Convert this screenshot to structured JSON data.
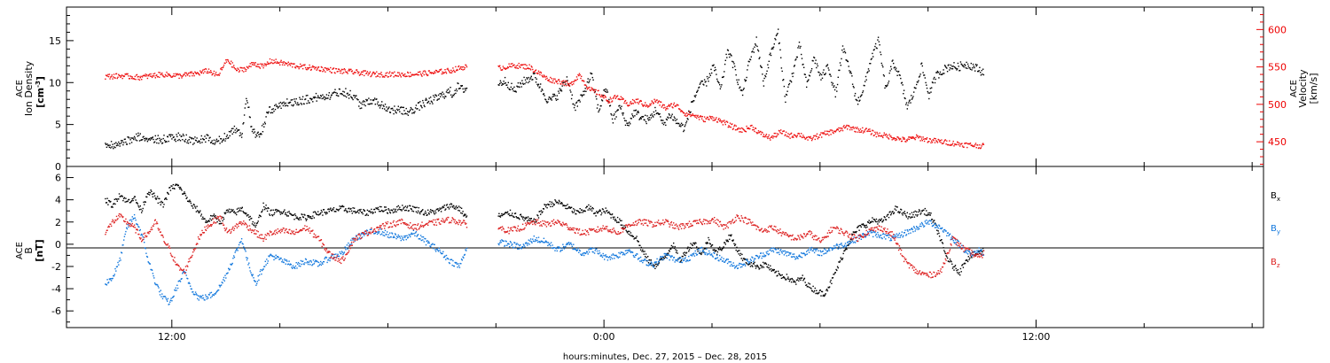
{
  "chart_data": [
    {
      "type": "scatter",
      "panel": "solar-wind-plasma",
      "ylabel_left": [
        "ACE",
        "Ion Density",
        "[cm",
        "-3",
        "]"
      ],
      "ylabel_right": [
        "ACE",
        "Velocity",
        "[km/s]"
      ],
      "ylim_left": [
        0,
        19
      ],
      "ylim_right": [
        417,
        630
      ],
      "yticks_left": [
        0,
        5,
        10,
        15
      ],
      "yticks_right": [
        450,
        500,
        550,
        600
      ],
      "series": [
        {
          "axis": "left",
          "color": "#000000",
          "x": [
            3.2,
            4.6,
            6.0,
            8.0,
            9.4,
            10.8,
            11.6,
            12.4,
            13.2,
            14.0,
            14.6,
            15.0,
            15.4,
            15.8,
            16.2,
            16.8,
            18.0,
            19.4,
            20.8,
            22.0,
            23.0,
            24.0,
            24.6,
            25.4,
            27.0,
            28.6,
            29.8,
            31.0,
            32.0,
            32.2,
            32.6,
            33.0,
            36.0,
            36.6,
            37.4,
            38.0,
            39.0,
            40.2,
            41.0,
            41.8,
            42.4,
            43.0,
            43.8,
            44.4,
            45.0,
            45.6,
            46.2,
            46.8,
            47.4,
            48.0,
            48.6,
            49.2,
            49.8,
            50.4,
            51.0,
            51.6,
            52.2,
            52.8,
            53.4,
            54.0,
            54.6,
            55.2,
            55.8,
            56.4,
            57.0,
            57.6,
            58.2,
            58.8,
            59.4,
            60.0,
            60.6,
            61.2,
            61.8,
            62.4,
            63.0,
            63.6,
            64.2,
            64.8,
            65.4,
            66.0,
            66.6,
            67.2,
            67.8,
            68.4,
            69.0,
            69.6,
            70.2,
            70.8,
            71.4,
            72.0,
            72.6,
            73.2,
            73.8,
            74.4,
            75.0,
            75.6,
            76.2,
            76.6
          ],
          "values": [
            2.5,
            2.8,
            3.5,
            3.2,
            3.5,
            3.0,
            3.4,
            2.8,
            3.5,
            4.5,
            3.8,
            8.5,
            4.5,
            3.5,
            4.0,
            6.5,
            7.5,
            7.8,
            8.2,
            8.5,
            9.0,
            8.3,
            7.2,
            8.0,
            6.8,
            6.5,
            7.5,
            8.2,
            9.0,
            8.5,
            9.5,
            9.2,
            9.8,
            10.2,
            9.0,
            10.0,
            10.8,
            7.8,
            8.5,
            10.5,
            7.0,
            8.2,
            11.0,
            6.5,
            9.5,
            5.5,
            7.2,
            4.8,
            6.5,
            5.8,
            5.5,
            6.8,
            5.0,
            6.2,
            5.2,
            4.5,
            7.5,
            9.5,
            10.0,
            12.0,
            9.0,
            14.0,
            11.5,
            8.5,
            12.5,
            15.0,
            10.0,
            13.5,
            16.0,
            8.0,
            11.0,
            14.5,
            9.5,
            13.0,
            10.5,
            12.0,
            8.5,
            14.0,
            11.5,
            7.5,
            9.5,
            13.0,
            15.0,
            9.0,
            12.5,
            10.5,
            7.0,
            9.0,
            12.0,
            8.5,
            10.8,
            11.5,
            12.0,
            11.8,
            12.2,
            12.0,
            11.5,
            11.2
          ]
        },
        {
          "axis": "right",
          "color": "#ee1111",
          "x": [
            3.2,
            4.6,
            6.0,
            8.0,
            9.4,
            10.8,
            11.8,
            12.6,
            13.4,
            14.2,
            15.0,
            15.6,
            16.4,
            17.0,
            18.0,
            19.6,
            21.0,
            22.4,
            24.0,
            25.6,
            27.2,
            28.8,
            30.4,
            32.0,
            33.2,
            34.6,
            36.0,
            37.4,
            38.6,
            39.6,
            40.0,
            40.6,
            41.4,
            42.0,
            42.8,
            43.6,
            44.4,
            45.2,
            46.0,
            46.8,
            47.6,
            48.4,
            49.2,
            50.0,
            50.8,
            51.6,
            52.4,
            53.2,
            54.0,
            54.8,
            55.6,
            56.4,
            57.2,
            58.0,
            58.8,
            59.6,
            60.4,
            61.2,
            62.0,
            62.8,
            63.6,
            64.4,
            65.2,
            66.0,
            66.8,
            67.6,
            68.4,
            69.2,
            70.0,
            71.0,
            72.0,
            73.0,
            74.0,
            75.0,
            76.0,
            76.6
          ],
          "values": [
            537,
            538,
            536,
            540,
            538,
            541,
            545,
            538,
            560,
            545,
            548,
            555,
            550,
            558,
            555,
            550,
            548,
            545,
            543,
            540,
            540,
            540,
            542,
            545,
            550,
            550,
            548,
            552,
            550,
            540,
            535,
            532,
            530,
            525,
            540,
            520,
            515,
            505,
            510,
            500,
            505,
            498,
            505,
            495,
            500,
            488,
            485,
            480,
            482,
            476,
            470,
            465,
            470,
            460,
            455,
            463,
            458,
            460,
            453,
            458,
            462,
            465,
            470,
            466,
            465,
            460,
            458,
            455,
            452,
            456,
            452,
            450,
            448,
            446,
            445,
            444
          ]
        }
      ],
      "gaps": [
        [
          33.4,
          36.0
        ]
      ]
    },
    {
      "type": "scatter",
      "panel": "interplanetary-magnetic-field",
      "ylabel_left": [
        "ACE",
        "B",
        "[nT]"
      ],
      "ylim": [
        -7.5,
        7.0
      ],
      "yticks": [
        -6,
        -4,
        -2,
        0,
        2,
        4,
        6
      ],
      "zero_line": true,
      "series": [
        {
          "name": "B",
          "sub": "x",
          "color": "#000000",
          "x": [
            3.2,
            3.8,
            4.4,
            5.0,
            5.6,
            6.2,
            6.8,
            7.4,
            8.0,
            8.6,
            9.2,
            9.8,
            10.4,
            11.0,
            11.6,
            12.2,
            12.8,
            13.4,
            14.0,
            14.6,
            15.2,
            15.8,
            16.4,
            17.0,
            18.0,
            19.0,
            20.0,
            21.0,
            22.0,
            23.0,
            24.0,
            25.0,
            26.0,
            27.0,
            28.0,
            29.0,
            30.0,
            31.0,
            32.0,
            32.8,
            33.3,
            36.0,
            37.0,
            38.0,
            39.0,
            40.0,
            41.0,
            42.0,
            42.6,
            43.0,
            43.6,
            44.2,
            45.0,
            45.6,
            46.2,
            47.0,
            47.6,
            48.0,
            48.6,
            49.2,
            50.0,
            50.6,
            51.2,
            51.8,
            52.4,
            53.0,
            53.6,
            54.2,
            54.8,
            55.4,
            56.0,
            56.6,
            57.2,
            57.8,
            58.4,
            59.0,
            59.6,
            60.2,
            60.8,
            61.4,
            62.0,
            62.6,
            63.2,
            63.8,
            64.4,
            65.0,
            65.6,
            66.2,
            66.8,
            67.4,
            68.0,
            68.6,
            69.2,
            69.8,
            70.4,
            71.0,
            71.6,
            72.2,
            72.8,
            73.4,
            74.0,
            74.6,
            75.0,
            75.6,
            76.2,
            76.6
          ],
          "values": [
            4.0,
            3.5,
            4.5,
            3.8,
            4.2,
            3.0,
            4.8,
            4.2,
            3.5,
            5.0,
            5.3,
            4.5,
            3.5,
            3.0,
            2.0,
            2.5,
            2.0,
            3.0,
            2.8,
            3.2,
            2.5,
            1.5,
            3.5,
            2.8,
            3.0,
            2.5,
            2.4,
            2.8,
            3.0,
            3.2,
            3.0,
            2.8,
            3.2,
            3.0,
            3.3,
            3.2,
            2.8,
            3.0,
            3.5,
            3.2,
            2.5,
            2.5,
            2.8,
            2.4,
            2.0,
            3.5,
            3.8,
            3.2,
            2.8,
            3.0,
            3.3,
            2.8,
            3.0,
            2.5,
            2.0,
            1.0,
            0.5,
            -0.5,
            -1.5,
            -2.0,
            -1.0,
            0.0,
            -1.5,
            -0.5,
            0.2,
            -1.0,
            0.5,
            -0.8,
            -0.2,
            0.8,
            -0.5,
            -1.5,
            -1.8,
            -2.0,
            -1.8,
            -2.5,
            -2.8,
            -3.0,
            -3.5,
            -3.0,
            -3.8,
            -4.2,
            -4.5,
            -3.5,
            -2.0,
            -0.5,
            0.8,
            1.5,
            1.8,
            2.2,
            2.0,
            2.5,
            3.2,
            2.8,
            2.5,
            2.8,
            3.0,
            2.5,
            1.0,
            -1.0,
            -2.0,
            -2.5,
            -1.5,
            -1.0,
            -0.8,
            -0.5
          ]
        },
        {
          "name": "B",
          "sub": "y",
          "color": "#1177dd",
          "x": [
            3.2,
            3.8,
            4.4,
            5.0,
            5.6,
            6.2,
            6.8,
            7.4,
            8.0,
            8.6,
            9.2,
            9.8,
            10.4,
            11.0,
            11.6,
            12.2,
            12.8,
            13.4,
            14.0,
            14.6,
            15.2,
            15.8,
            16.4,
            17.0,
            18.0,
            19.0,
            20.0,
            21.0,
            22.0,
            23.0,
            24.0,
            25.0,
            26.0,
            27.0,
            28.0,
            29.0,
            30.0,
            31.0,
            32.0,
            32.8,
            33.3,
            36.0,
            37.0,
            38.0,
            39.0,
            40.0,
            41.0,
            42.0,
            43.0,
            44.0,
            45.0,
            46.0,
            47.0,
            48.0,
            49.0,
            50.0,
            51.0,
            52.0,
            53.0,
            54.0,
            55.0,
            56.0,
            57.0,
            58.0,
            59.0,
            60.0,
            61.0,
            62.0,
            63.0,
            64.0,
            65.0,
            66.0,
            67.0,
            68.0,
            69.0,
            70.0,
            71.0,
            72.0,
            73.0,
            74.0,
            75.0,
            75.6,
            76.2,
            76.6
          ],
          "values": [
            -3.5,
            -3.0,
            -1.5,
            1.5,
            2.5,
            1.0,
            -1.5,
            -3.5,
            -4.8,
            -5.3,
            -3.8,
            -2.5,
            -4.0,
            -4.8,
            -4.8,
            -4.5,
            -3.8,
            -2.5,
            -1.0,
            0.5,
            -2.0,
            -3.5,
            -2.0,
            -1.0,
            -1.5,
            -2.0,
            -1.5,
            -1.8,
            -1.2,
            -0.8,
            0.5,
            1.0,
            1.2,
            0.8,
            0.5,
            1.0,
            0.2,
            -0.5,
            -1.5,
            -2.0,
            -0.5,
            0.2,
            0.0,
            -0.3,
            0.5,
            0.2,
            -0.5,
            0.0,
            -0.8,
            -0.5,
            -1.2,
            -1.0,
            -0.5,
            -1.5,
            -1.8,
            -1.0,
            -1.5,
            -1.2,
            -0.5,
            -1.0,
            -1.5,
            -2.0,
            -1.5,
            -1.0,
            -0.5,
            -0.8,
            -1.2,
            -0.5,
            -0.8,
            -0.3,
            0.0,
            0.5,
            1.0,
            0.8,
            0.5,
            1.0,
            1.5,
            2.0,
            1.5,
            0.5,
            -0.5,
            -1.0,
            -0.5,
            -0.8
          ]
        },
        {
          "name": "B",
          "sub": "z",
          "color": "#dd2222",
          "x": [
            3.2,
            3.8,
            4.4,
            5.0,
            5.6,
            6.2,
            6.8,
            7.4,
            8.0,
            8.6,
            9.2,
            9.8,
            10.4,
            11.0,
            11.6,
            12.2,
            12.8,
            13.4,
            14.0,
            14.6,
            15.2,
            15.8,
            16.4,
            17.0,
            18.0,
            19.0,
            20.0,
            21.0,
            22.0,
            23.0,
            24.0,
            25.0,
            26.0,
            27.0,
            28.0,
            29.0,
            30.0,
            31.0,
            32.0,
            32.8,
            33.3,
            36.0,
            37.0,
            38.0,
            39.0,
            40.0,
            41.0,
            42.0,
            43.0,
            44.0,
            45.0,
            46.0,
            47.0,
            48.0,
            49.0,
            50.0,
            51.0,
            52.0,
            53.0,
            54.0,
            55.0,
            56.0,
            57.0,
            58.0,
            59.0,
            60.0,
            61.0,
            62.0,
            63.0,
            64.0,
            65.0,
            66.0,
            67.0,
            68.0,
            69.0,
            70.0,
            71.0,
            72.0,
            73.0,
            74.0,
            75.0,
            75.6,
            76.2,
            76.6
          ],
          "values": [
            1.0,
            2.0,
            2.5,
            2.0,
            1.5,
            0.5,
            1.0,
            2.0,
            0.5,
            -0.5,
            -2.0,
            -2.5,
            -1.0,
            0.5,
            1.5,
            2.0,
            2.5,
            1.0,
            1.5,
            2.0,
            1.5,
            1.0,
            0.5,
            1.0,
            1.2,
            1.0,
            1.5,
            0.5,
            -1.0,
            -1.5,
            0.5,
            1.0,
            1.5,
            1.8,
            2.0,
            1.5,
            1.8,
            2.0,
            2.2,
            2.0,
            1.8,
            1.5,
            1.2,
            1.5,
            2.0,
            1.8,
            2.0,
            1.5,
            1.0,
            1.2,
            1.5,
            1.0,
            1.8,
            2.0,
            1.8,
            2.0,
            1.5,
            1.8,
            2.0,
            2.2,
            1.5,
            2.5,
            2.0,
            1.2,
            1.5,
            0.8,
            0.5,
            1.0,
            0.2,
            1.5,
            1.0,
            0.5,
            1.2,
            1.5,
            0.8,
            -1.5,
            -2.5,
            -2.8,
            -2.5,
            0.5,
            -0.5,
            -0.8,
            -1.2,
            -0.8
          ]
        }
      ],
      "gaps": [
        [
          33.4,
          36.0
        ]
      ]
    }
  ],
  "x_axis": {
    "range": [
      0,
      100
    ],
    "tick_labels": [
      {
        "label": "12:00",
        "x": 8.8
      },
      {
        "label": "0:00",
        "x": 44.9
      },
      {
        "label": "12:00",
        "x": 81.0
      }
    ],
    "xlabel": "hours:minutes, Dec. 27, 2015 – Dec. 28, 2015"
  },
  "legend": [
    {
      "name": "B",
      "sub": "x",
      "color": "#000000"
    },
    {
      "name": "B",
      "sub": "y",
      "color": "#1177dd"
    },
    {
      "name": "B",
      "sub": "z",
      "color": "#dd2222"
    }
  ]
}
